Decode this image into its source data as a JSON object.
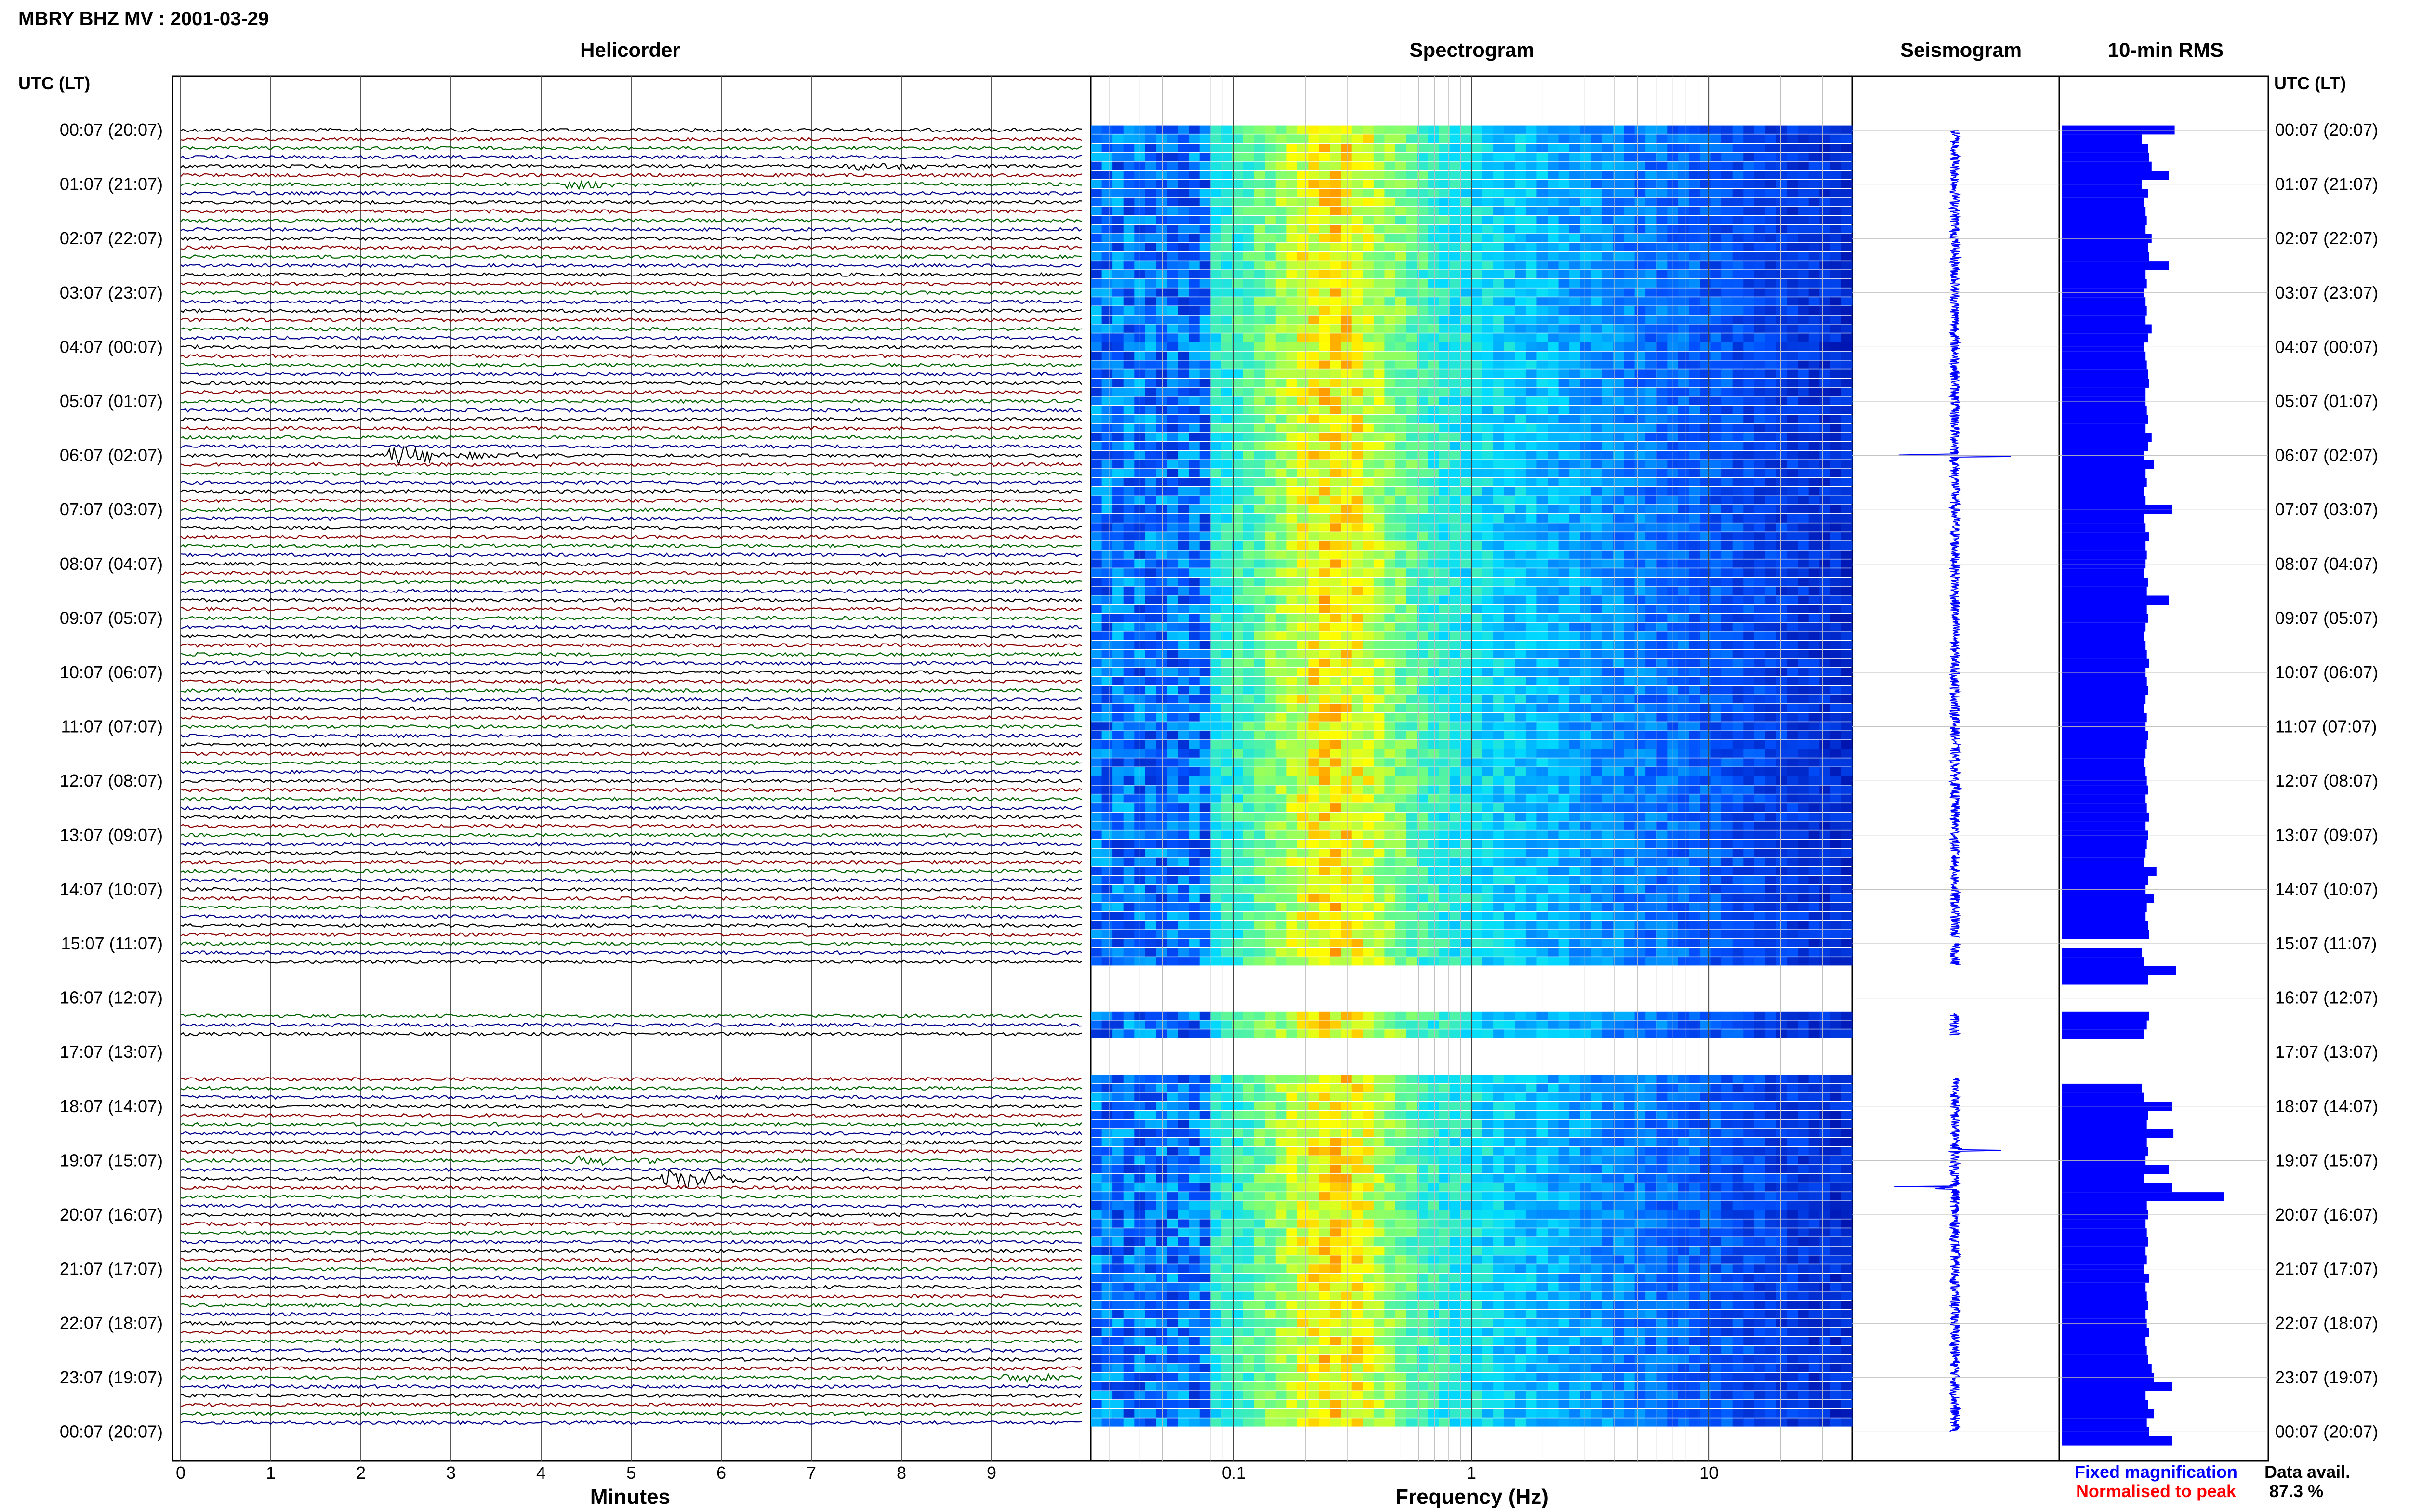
{
  "header": {
    "title": "MBRY BHZ MV : 2001-03-29",
    "utc_label_left": "UTC (LT)",
    "utc_label_right": "UTC (LT)"
  },
  "panels": {
    "helicorder": "Helicorder",
    "spectrogram": "Spectrogram",
    "seismogram": "Seismogram",
    "rms": "10-min RMS"
  },
  "axes": {
    "minutes_label": "Minutes",
    "frequency_label": "Frequency (Hz)"
  },
  "legend": {
    "fixed": "Fixed magnification",
    "normalised": "Normalised to peak",
    "fixed_color": "#0000ff",
    "normalised_color": "#ff0000"
  },
  "data_avail": {
    "label": "Data avail.",
    "value": "87.3 %"
  },
  "colors": {
    "trace_cycle": [
      "#000000",
      "#8b0000",
      "#006400",
      "#00008b"
    ],
    "bar": "#0000ff",
    "spectro_low": "#0000aa",
    "spectro_high": "#ffff00"
  },
  "chart_data": [
    {
      "type": "line",
      "name": "helicorder",
      "title": "Helicorder",
      "xlabel": "Minutes",
      "x_ticks": [
        "0",
        "1",
        "2",
        "3",
        "4",
        "5",
        "6",
        "7",
        "8",
        "9"
      ],
      "xlim": [
        0,
        10
      ],
      "row_labels": [
        "00:07 (20:07)",
        "01:07 (21:07)",
        "02:07 (22:07)",
        "03:07 (23:07)",
        "04:07 (00:07)",
        "05:07 (01:07)",
        "06:07 (02:07)",
        "07:07 (03:07)",
        "08:07 (04:07)",
        "09:07 (05:07)",
        "10:07 (06:07)",
        "11:07 (07:07)",
        "12:07 (08:07)",
        "13:07 (09:07)",
        "14:07 (10:07)",
        "15:07 (11:07)",
        "16:07 (12:07)",
        "17:07 (13:07)",
        "18:07 (14:07)",
        "19:07 (15:07)",
        "20:07 (16:07)",
        "21:07 (17:07)",
        "22:07 (18:07)",
        "23:07 (19:07)",
        "00:07 (20:07)"
      ],
      "traces_per_hour": 6,
      "gaps_hours": [
        [
          14.9,
          15.0
        ],
        [
          15.4,
          16.3
        ],
        [
          16.7,
          17.5
        ]
      ],
      "events": [
        {
          "hour": 6.0,
          "minute": 2.5,
          "amp": 3.0
        },
        {
          "hour": 19.3,
          "minute": 5.5,
          "amp": 3.5
        },
        {
          "hour": 19.0,
          "minute": 4.5,
          "amp": 1.5
        },
        {
          "hour": 0.6,
          "minute": 7.6,
          "amp": 1.2
        },
        {
          "hour": 1.0,
          "minute": 4.4,
          "amp": 1.2
        },
        {
          "hour": 23.0,
          "minute": 9.3,
          "amp": 1.2
        }
      ]
    },
    {
      "type": "heatmap",
      "name": "spectrogram",
      "title": "Spectrogram",
      "xlabel": "Frequency (Hz)",
      "x_scale": "log",
      "x_ticks": [
        "0.1",
        "1",
        "10"
      ],
      "xlim": [
        0.025,
        40
      ]
    },
    {
      "type": "line",
      "name": "seismogram",
      "title": "Seismogram",
      "spikes_hours": [
        6.0,
        18.8,
        19.5
      ]
    },
    {
      "type": "bar",
      "name": "10-min RMS",
      "title": "10-min RMS",
      "hours_start": 0,
      "bin_minutes": 10,
      "values": [
        0.57,
        0.3,
        0.35,
        0.36,
        0.38,
        0.52,
        0.3,
        0.35,
        0.32,
        0.33,
        0.34,
        0.33,
        0.38,
        0.35,
        0.36,
        0.52,
        0.33,
        0.34,
        0.32,
        0.33,
        0.34,
        0.33,
        0.38,
        0.35,
        0.32,
        0.33,
        0.34,
        0.35,
        0.36,
        0.33,
        0.33,
        0.34,
        0.35,
        0.33,
        0.38,
        0.35,
        0.32,
        0.4,
        0.33,
        0.34,
        0.32,
        0.33,
        0.55,
        0.32,
        0.33,
        0.36,
        0.33,
        0.34,
        0.33,
        0.32,
        0.35,
        0.34,
        0.52,
        0.34,
        0.35,
        0.33,
        0.32,
        0.33,
        0.34,
        0.36,
        0.33,
        0.34,
        0.35,
        0.33,
        0.32,
        0.34,
        0.33,
        0.35,
        0.34,
        0.33,
        0.32,
        0.33,
        0.34,
        0.35,
        0.33,
        0.34,
        0.36,
        0.33,
        0.35,
        0.34,
        0.33,
        0.32,
        0.42,
        0.35,
        0.33,
        0.4,
        0.34,
        0.33,
        0.35,
        0.36,
        null,
        0.3,
        0.32,
        0.58,
        0.35,
        null,
        null,
        null,
        0.36,
        0.34,
        0.32,
        null,
        null,
        null,
        null,
        null,
        0.3,
        0.32,
        0.55,
        0.35,
        0.34,
        0.56,
        0.34,
        0.35,
        0.33,
        0.52,
        0.32,
        0.55,
        0.98,
        0.34,
        0.35,
        0.33,
        0.34,
        0.35,
        0.33,
        0.34,
        0.32,
        0.36,
        0.33,
        0.34,
        0.35,
        0.33,
        0.34,
        0.36,
        0.33,
        0.34,
        0.35,
        0.38,
        0.4,
        0.55,
        0.33,
        0.35,
        0.4,
        0.34,
        0.36,
        0.55
      ]
    }
  ]
}
